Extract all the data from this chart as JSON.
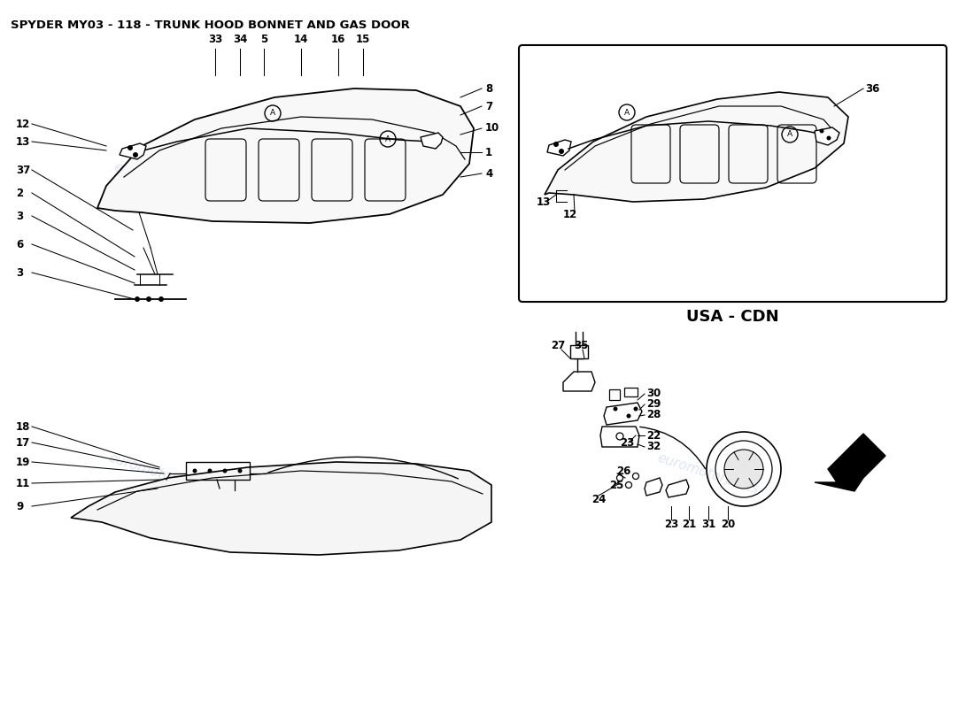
{
  "title": "SPYDER MY03 - 118 - TRUNK HOOD BONNET AND GAS DOOR",
  "background_color": "#ffffff",
  "watermark_text": "euromotorparts",
  "watermark_color": "#c8d4e8",
  "usa_cdn_label": "USA - CDN",
  "fig_width": 11.0,
  "fig_height": 8.0,
  "dpi": 100,
  "top_labels": [
    [
      243,
      755,
      "33"
    ],
    [
      271,
      755,
      "34"
    ],
    [
      298,
      755,
      "5"
    ],
    [
      340,
      755,
      "14"
    ],
    [
      382,
      755,
      "16"
    ],
    [
      410,
      755,
      "15"
    ]
  ],
  "left_labels_hood": [
    [
      18,
      660,
      "12",
      120,
      635
    ],
    [
      18,
      640,
      "13",
      120,
      630
    ],
    [
      18,
      608,
      "37",
      150,
      540
    ],
    [
      18,
      582,
      "2",
      152,
      510
    ],
    [
      18,
      556,
      "3",
      152,
      495
    ],
    [
      18,
      524,
      "6",
      152,
      480
    ],
    [
      18,
      492,
      "3",
      152,
      462
    ]
  ],
  "right_labels_hood": [
    [
      548,
      700,
      "8",
      520,
      690
    ],
    [
      548,
      680,
      "7",
      520,
      670
    ],
    [
      548,
      655,
      "10",
      520,
      648
    ],
    [
      548,
      628,
      "1",
      520,
      628
    ],
    [
      548,
      604,
      "4",
      520,
      600
    ]
  ],
  "left_labels_car": [
    [
      18,
      318,
      "18",
      180,
      272
    ],
    [
      18,
      300,
      "17",
      180,
      270
    ],
    [
      18,
      278,
      "19",
      185,
      265
    ],
    [
      18,
      254,
      "11",
      180,
      258
    ],
    [
      18,
      228,
      "9",
      178,
      248
    ]
  ]
}
